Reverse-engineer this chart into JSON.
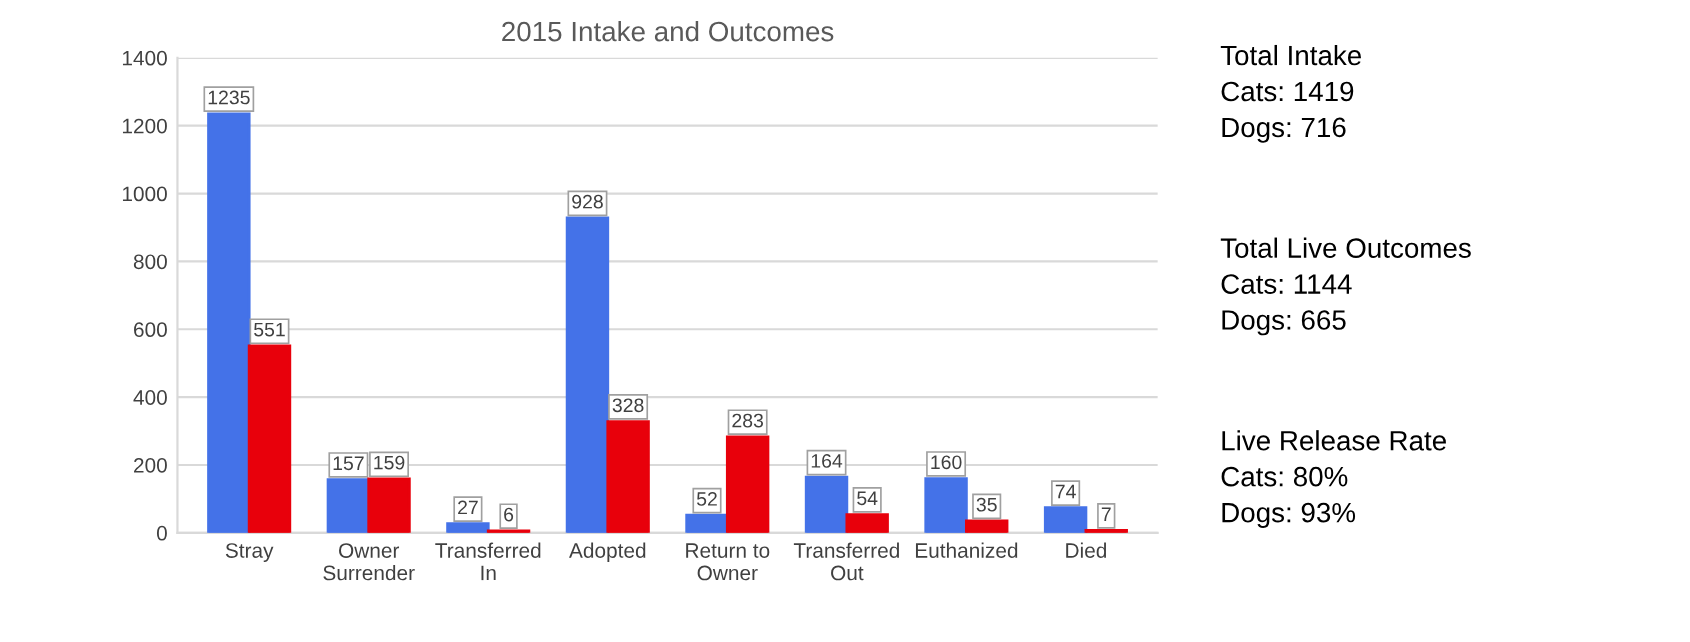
{
  "chart_data": {
    "type": "bar",
    "title": "2015 Intake and Outcomes",
    "categories": [
      "Stray",
      "Owner\nSurrender",
      "Transferred\nIn",
      "Adopted",
      "Return to\nOwner",
      "Transferred\nOut",
      "Euthanized",
      "Died"
    ],
    "series": [
      {
        "color": "#4472e8",
        "values": [
          1235,
          157,
          27,
          928,
          52,
          164,
          160,
          74
        ]
      },
      {
        "color": "#e8000b",
        "values": [
          551,
          159,
          6,
          328,
          283,
          54,
          35,
          7
        ]
      }
    ],
    "ylim": [
      0,
      1400
    ],
    "yticks": [
      0,
      200,
      400,
      600,
      800,
      1000,
      1200,
      1400
    ],
    "grid": "y",
    "data_labels": true,
    "annotations": [
      "Total Intake\nCats: 1419\nDogs: 716",
      "Total Live Outcomes\nCats: 1144\nDogs: 665",
      "Live Release Rate\nCats: 80%\nDogs: 93%"
    ]
  }
}
